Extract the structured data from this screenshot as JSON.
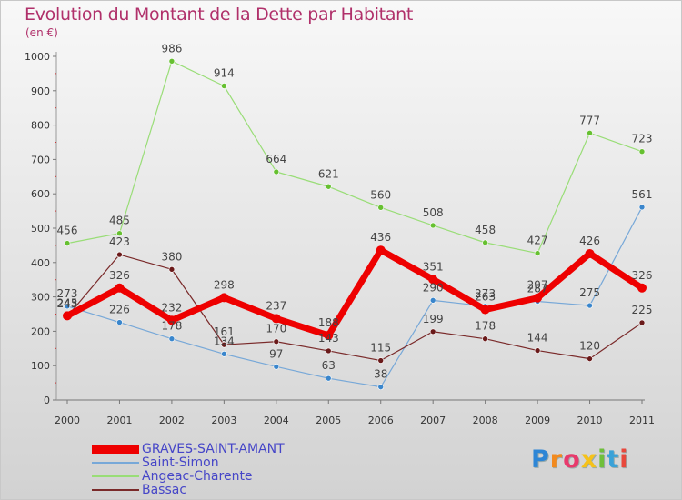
{
  "title": "Evolution du Montant de la Dette par Habitant",
  "unit_label": "(en €)",
  "logo": {
    "text": "Proxiti",
    "letters": [
      "P",
      "r",
      "o",
      "x",
      "i",
      "t",
      "i"
    ],
    "colors": [
      "#2e86d6",
      "#f28a1e",
      "#e83a6c",
      "#f6c21a",
      "#6fbf3a",
      "#3aa2d8",
      "#e8483c"
    ]
  },
  "chart_data": {
    "type": "line",
    "categories": [
      "2000",
      "2001",
      "2002",
      "2003",
      "2004",
      "2005",
      "2006",
      "2007",
      "2008",
      "2009",
      "2010",
      "2011"
    ],
    "ylim": [
      0,
      1000
    ],
    "yticks": [
      0,
      100,
      200,
      300,
      400,
      500,
      600,
      700,
      800,
      900,
      1000
    ],
    "grid": false,
    "legend_position": "bottom-left",
    "series": [
      {
        "name": "Angeac-Charente",
        "color": "#99dd77",
        "marker": "#66c030",
        "width": 1.2,
        "values": [
          456,
          485,
          986,
          914,
          664,
          621,
          560,
          508,
          458,
          427,
          777,
          723
        ]
      },
      {
        "name": "Saint-Simon",
        "color": "#77a8d8",
        "marker": "#3a86cc",
        "width": 1.2,
        "values": [
          273,
          226,
          178,
          134,
          97,
          63,
          38,
          290,
          273,
          287,
          275,
          561
        ]
      },
      {
        "name": "Bassac",
        "color": "#7a2a2a",
        "marker": "#6a1a1a",
        "width": 1.2,
        "values": [
          243,
          423,
          380,
          161,
          170,
          143,
          115,
          199,
          178,
          144,
          120,
          225
        ]
      },
      {
        "name": "GRAVES-SAINT-AMANT",
        "color": "#ee0000",
        "marker": "#ee0000",
        "width": 7,
        "values": [
          245,
          326,
          232,
          298,
          237,
          188,
          436,
          351,
          263,
          297,
          426,
          326
        ]
      }
    ],
    "legend_order": [
      "GRAVES-SAINT-AMANT",
      "Saint-Simon",
      "Angeac-Charente",
      "Bassac"
    ]
  }
}
